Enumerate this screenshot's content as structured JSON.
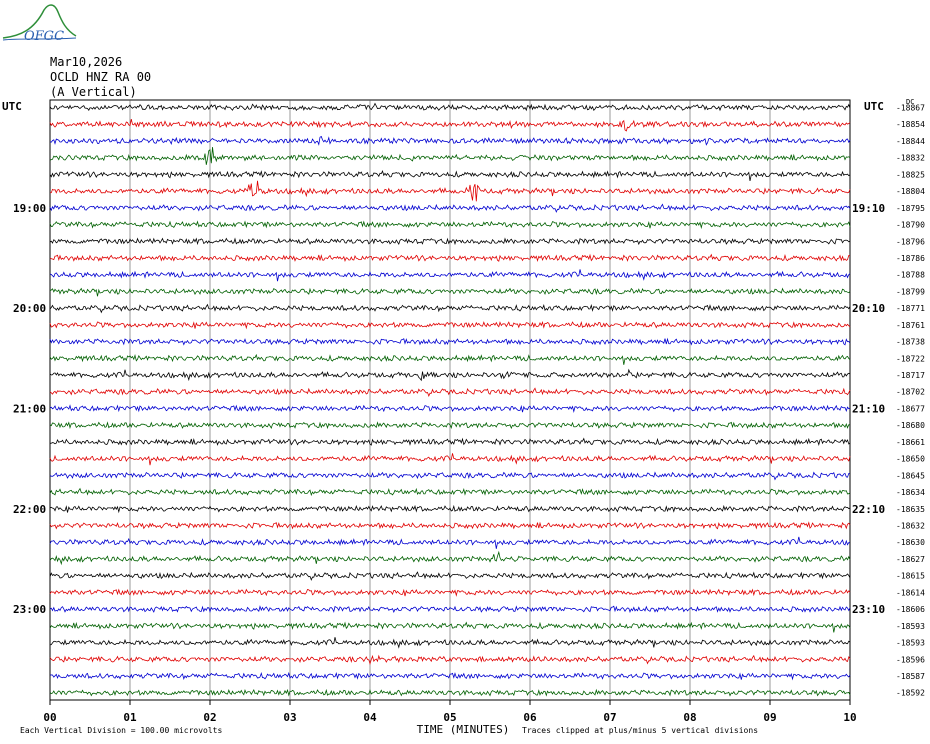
{
  "header": {
    "logo_text": "OFGC",
    "date": "Mar10,2026",
    "station": "OCLD HNZ RA 00",
    "component": "(A Vertical)"
  },
  "chart_data": {
    "type": "line",
    "left_label": "UTC",
    "right_label": "UTC",
    "corner_label": "DC",
    "xlabel": "TIME (MINUTES)",
    "x_ticks": [
      "00",
      "01",
      "02",
      "03",
      "04",
      "05",
      "06",
      "07",
      "08",
      "09",
      "10"
    ],
    "xlim": [
      0,
      10
    ],
    "left_time_labels": [
      {
        "row": 6,
        "text": "19:00"
      },
      {
        "row": 12,
        "text": "20:00"
      },
      {
        "row": 18,
        "text": "21:00"
      },
      {
        "row": 24,
        "text": "22:00"
      },
      {
        "row": 30,
        "text": "23:00"
      }
    ],
    "right_time_labels": [
      {
        "row": 6,
        "text": "19:10"
      },
      {
        "row": 12,
        "text": "20:10"
      },
      {
        "row": 18,
        "text": "21:10"
      },
      {
        "row": 24,
        "text": "22:10"
      },
      {
        "row": 30,
        "text": "23:10"
      }
    ],
    "dc_offsets": [
      "-18867",
      "-18854",
      "-18844",
      "-18832",
      "-18825",
      "-18804",
      "-18795",
      "-18790",
      "-18796",
      "-18786",
      "-18788",
      "-18799",
      "-18771",
      "-18761",
      "-18738",
      "-18722",
      "-18717",
      "-18702",
      "-18677",
      "-18680",
      "-18661",
      "-18650",
      "-18645",
      "-18634",
      "-18635",
      "-18632",
      "-18630",
      "-18627",
      "-18615",
      "-18614",
      "-18606",
      "-18593",
      "-18593",
      "-18596",
      "-18587",
      "-18592"
    ],
    "trace_colors": [
      "#000000",
      "#e00000",
      "#0000d0",
      "#006000"
    ],
    "events": [
      {
        "row": 1,
        "minute": 7.2,
        "amplitude": 9
      },
      {
        "row": 2,
        "minute": 3.4,
        "amplitude": 6
      },
      {
        "row": 3,
        "minute": 2.0,
        "amplitude": 12
      },
      {
        "row": 5,
        "minute": 2.55,
        "amplitude": 12
      },
      {
        "row": 5,
        "minute": 5.3,
        "amplitude": 10
      },
      {
        "row": 16,
        "minute": 4.65,
        "amplitude": 6
      },
      {
        "row": 16,
        "minute": 5.75,
        "amplitude": 5
      },
      {
        "row": 27,
        "minute": 5.6,
        "amplitude": 6
      },
      {
        "row": 33,
        "minute": 4.0,
        "amplitude": 4
      }
    ],
    "footer_left": "Each Vertical Division =  100.00 microvolts",
    "footer_right": "Traces clipped at plus/minus 5 vertical divisions"
  }
}
